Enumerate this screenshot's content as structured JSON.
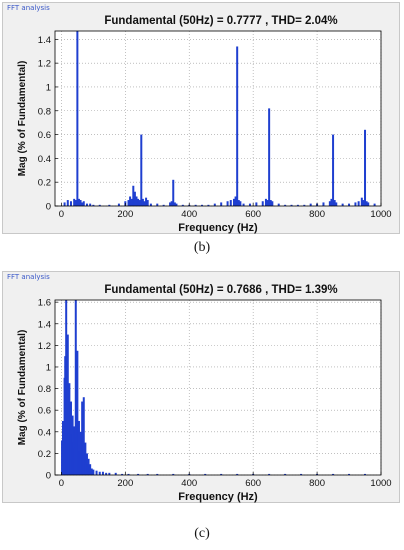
{
  "panels": [
    {
      "window_label": "FFT analysis",
      "figure_label": "(b)",
      "chart_title": "Fundamental (50Hz) = 0.7777 , THD= 2.04%",
      "chart_data": {
        "type": "bar",
        "title": "Fundamental (50Hz) = 0.7777 , THD= 2.04%",
        "xlabel": "Frequency (Hz)",
        "ylabel": "Mag (% of Fundamental)",
        "xlim": [
          -20,
          1000
        ],
        "ylim": [
          0,
          1.47
        ],
        "xticks": [
          0,
          200,
          400,
          600,
          800,
          1000
        ],
        "yticks": [
          0,
          0.2,
          0.4,
          0.6,
          0.8,
          1,
          1.2,
          1.4
        ],
        "grid": true,
        "color": "#1f3fd0",
        "x": [
          10,
          20,
          30,
          40,
          45,
          50,
          55,
          60,
          65,
          70,
          80,
          90,
          100,
          120,
          150,
          180,
          200,
          210,
          215,
          220,
          225,
          230,
          235,
          240,
          245,
          250,
          255,
          260,
          265,
          270,
          280,
          300,
          320,
          340,
          345,
          350,
          355,
          360,
          380,
          400,
          420,
          440,
          460,
          480,
          500,
          520,
          530,
          540,
          545,
          550,
          555,
          560,
          570,
          590,
          610,
          630,
          640,
          645,
          650,
          655,
          660,
          680,
          700,
          720,
          740,
          760,
          780,
          800,
          820,
          840,
          845,
          850,
          855,
          860,
          880,
          900,
          920,
          930,
          940,
          945,
          950,
          955,
          960,
          980
        ],
        "values": [
          0.03,
          0.05,
          0.04,
          0.06,
          0.05,
          1.47,
          0.06,
          0.05,
          0.03,
          0.04,
          0.02,
          0.02,
          0.01,
          0.01,
          0.01,
          0.02,
          0.04,
          0.05,
          0.08,
          0.06,
          0.17,
          0.12,
          0.08,
          0.06,
          0.05,
          0.6,
          0.06,
          0.04,
          0.07,
          0.05,
          0.02,
          0.02,
          0.01,
          0.03,
          0.04,
          0.22,
          0.03,
          0.02,
          0.01,
          0.01,
          0.01,
          0.01,
          0.01,
          0.02,
          0.03,
          0.04,
          0.05,
          0.06,
          0.08,
          1.34,
          0.05,
          0.04,
          0.02,
          0.02,
          0.03,
          0.04,
          0.06,
          0.05,
          0.82,
          0.05,
          0.04,
          0.02,
          0.01,
          0.01,
          0.01,
          0.01,
          0.02,
          0.02,
          0.03,
          0.04,
          0.06,
          0.6,
          0.05,
          0.03,
          0.02,
          0.02,
          0.03,
          0.04,
          0.07,
          0.05,
          0.64,
          0.04,
          0.03,
          0.02
        ]
      }
    },
    {
      "window_label": "FFT analysis",
      "figure_label": "(c)",
      "chart_title": "Fundamental (50Hz) = 0.7686 , THD= 1.39%",
      "chart_data": {
        "type": "bar",
        "title": "Fundamental (50Hz) = 0.7686 , THD= 1.39%",
        "xlabel": "Frequency (Hz)",
        "ylabel": "Mag (% of Fundamental)",
        "xlim": [
          -20,
          1000
        ],
        "ylim": [
          0,
          1.62
        ],
        "xticks": [
          0,
          200,
          400,
          600,
          800,
          1000
        ],
        "yticks": [
          0,
          0.2,
          0.4,
          0.6,
          0.8,
          1,
          1.2,
          1.4,
          1.6
        ],
        "grid": true,
        "color": "#1f3fd0",
        "x": [
          2,
          5,
          8,
          10,
          12,
          15,
          17,
          20,
          22,
          25,
          27,
          30,
          32,
          35,
          37,
          40,
          42,
          45,
          47,
          50,
          52,
          55,
          57,
          60,
          62,
          65,
          67,
          70,
          72,
          75,
          77,
          80,
          82,
          85,
          87,
          90,
          95,
          100,
          110,
          120,
          130,
          140,
          150,
          170,
          190,
          210,
          240,
          270,
          300,
          350,
          400,
          450,
          500,
          550,
          600,
          650,
          700,
          750,
          800,
          850,
          900,
          950
        ],
        "values": [
          0.32,
          0.5,
          0.45,
          0.9,
          1.1,
          1.62,
          1.05,
          1.3,
          0.62,
          0.85,
          0.5,
          0.68,
          0.38,
          0.55,
          0.3,
          0.45,
          0.25,
          1.62,
          0.35,
          1.15,
          0.3,
          0.5,
          0.22,
          0.4,
          0.2,
          0.68,
          0.25,
          0.72,
          0.18,
          0.3,
          0.12,
          0.2,
          0.1,
          0.15,
          0.08,
          0.1,
          0.06,
          0.05,
          0.04,
          0.03,
          0.03,
          0.02,
          0.02,
          0.02,
          0.01,
          0.01,
          0.01,
          0.01,
          0.01,
          0.01,
          0.01,
          0.01,
          0.01,
          0.01,
          0.01,
          0.01,
          0.01,
          0.01,
          0.01,
          0.01,
          0.01,
          0.01
        ]
      }
    }
  ]
}
